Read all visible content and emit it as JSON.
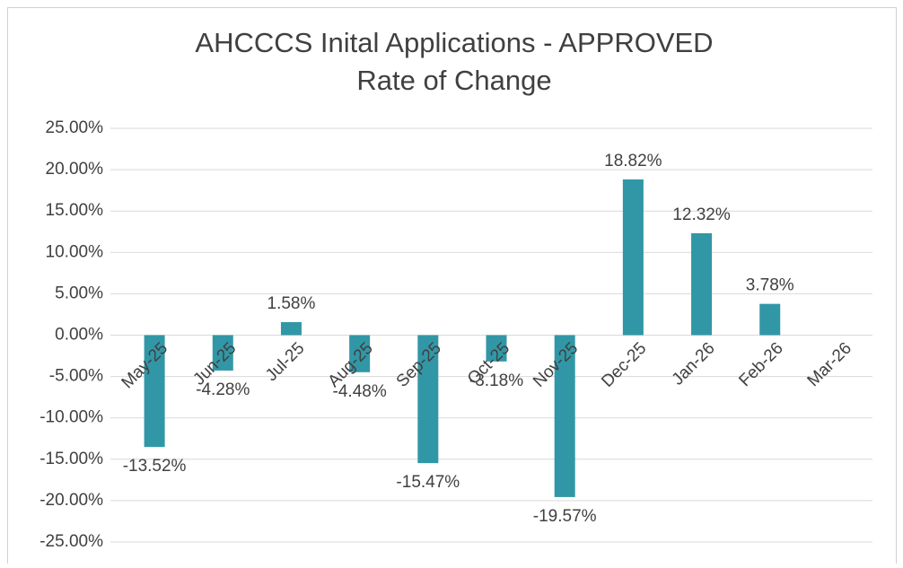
{
  "chart_data": {
    "type": "bar",
    "title": [
      "AHCCCS Inital Applications - APPROVED",
      "Rate of Change"
    ],
    "categories": [
      "May-25",
      "Jun-25",
      "Jul-25",
      "Aug-25",
      "Sep-25",
      "Oct-25",
      "Nov-25",
      "Dec-25",
      "Jan-26",
      "Feb-26",
      "Mar-26"
    ],
    "values": [
      -13.52,
      -4.28,
      1.58,
      -4.48,
      -15.47,
      -3.18,
      -19.57,
      18.82,
      12.32,
      3.78,
      null
    ],
    "value_labels": [
      "-13.52%",
      "-4.28%",
      "1.58%",
      "-4.48%",
      "-15.47%",
      "-3.18%",
      "-19.57%",
      "18.82%",
      "12.32%",
      "3.78%",
      null
    ],
    "color": "#3197a6",
    "ylim": [
      -25,
      25
    ],
    "yticks": [
      {
        "value": -25,
        "label": "-25.00%"
      },
      {
        "value": -20,
        "label": "-20.00%"
      },
      {
        "value": -15,
        "label": "-15.00%"
      },
      {
        "value": -10,
        "label": "-10.00%"
      },
      {
        "value": -5,
        "label": "-5.00%"
      },
      {
        "value": 0,
        "label": "0.00%"
      },
      {
        "value": 5,
        "label": "5.00%"
      },
      {
        "value": 10,
        "label": "10.00%"
      },
      {
        "value": 15,
        "label": "15.00%"
      },
      {
        "value": 20,
        "label": "20.00%"
      },
      {
        "value": 25,
        "label": "25.00%"
      }
    ],
    "grid": true
  }
}
